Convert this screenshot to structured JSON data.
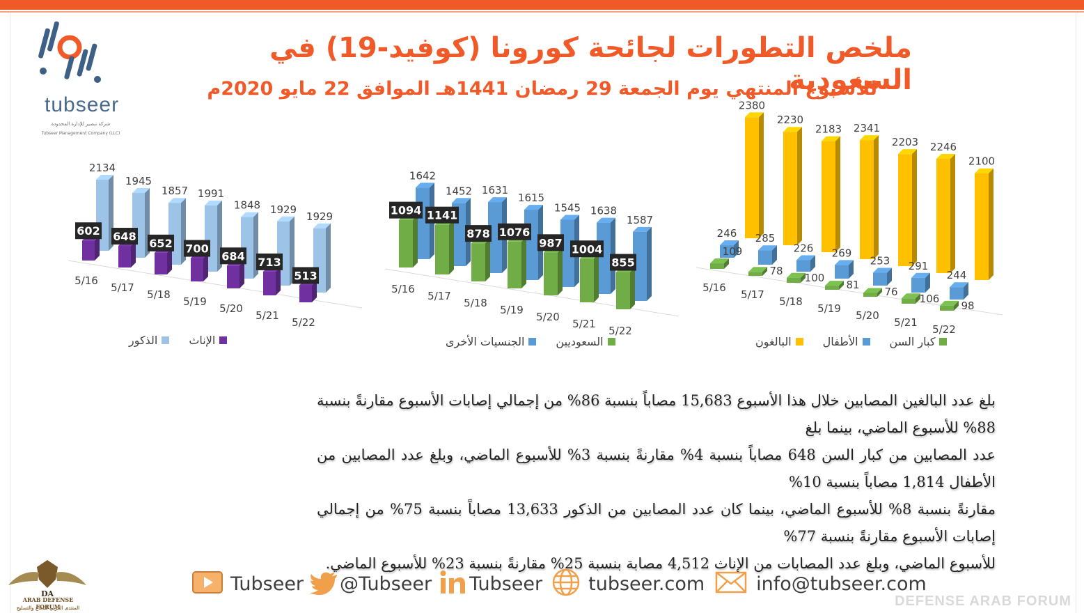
{
  "header": {
    "title": "ملخص التطورات لجائحة كورونا (كوفيد-19) في السعودية",
    "subtitle": "للأسبوع المنتهي يوم الجمعة 29 رمضان 1441هـ الموافق 22 مايو 2020م"
  },
  "logo": {
    "name": "tubseer",
    "tagline": "شركة تبصير للإدارة المحدودة",
    "tagline_en": "Tubseer Management Company (LLC)"
  },
  "colors": {
    "accent": "#f05a28",
    "female": "#7030a0",
    "male": "#9dc3e6",
    "saudi": "#70ad47",
    "others": "#5b9bd5",
    "adults": "#ffc000",
    "children": "#5b9bd5",
    "elderly": "#70ad47"
  },
  "chart_data": [
    {
      "type": "bar",
      "categories": [
        "5/16",
        "5/17",
        "5/18",
        "5/19",
        "5/20",
        "5/21",
        "5/22"
      ],
      "series": [
        {
          "name": "الإناث",
          "values": [
            602,
            648,
            652,
            700,
            684,
            713,
            513
          ],
          "color": "#7030a0"
        },
        {
          "name": "الذكور",
          "values": [
            2134,
            1945,
            1857,
            1991,
            1848,
            1929,
            1929
          ],
          "color": "#9dc3e6"
        }
      ],
      "legend_position": "bottom"
    },
    {
      "type": "bar",
      "categories": [
        "5/16",
        "5/17",
        "5/18",
        "5/19",
        "5/20",
        "5/21",
        "5/22"
      ],
      "series": [
        {
          "name": "السعوديين",
          "values": [
            1094,
            1141,
            878,
            1076,
            987,
            1004,
            855
          ],
          "color": "#70ad47"
        },
        {
          "name": "الجنسيات الأخرى",
          "values": [
            1642,
            1452,
            1631,
            1615,
            1545,
            1638,
            1587
          ],
          "color": "#5b9bd5"
        }
      ],
      "legend_position": "bottom"
    },
    {
      "type": "bar",
      "categories": [
        "5/16",
        "5/17",
        "5/18",
        "5/19",
        "5/20",
        "5/21",
        "5/22"
      ],
      "series": [
        {
          "name": "كبار السن",
          "values": [
            109,
            78,
            100,
            81,
            76,
            106,
            98
          ],
          "color": "#70ad47"
        },
        {
          "name": "الأطفال",
          "values": [
            246,
            285,
            226,
            269,
            253,
            291,
            244
          ],
          "color": "#5b9bd5"
        },
        {
          "name": "البالغون",
          "values": [
            2380,
            2230,
            2183,
            2341,
            2203,
            2246,
            2100
          ],
          "color": "#ffc000"
        }
      ],
      "legend_position": "bottom"
    }
  ],
  "paragraph": [
    "بلغ عدد البالغين المصابين خلال هذا الأسبوع 15,683 مصاباً بنسبة 86% من إجمالي إصابات الأسبوع مقارنةً بنسبة 88% للأسبوع الماضي، بينما بلغ",
    "عدد المصابين من كبار السن 648 مصاباً بنسبة 4% مقارنةً بنسبة 3% للأسبوع الماضي، وبلغ عدد المصابين من الأطفال 1,814 مصاباً بنسبة 10%",
    "مقارنةً بنسبة 8% للأسبوع الماضي، بينما كان عدد المصابين من الذكور 13,633 مصاباً بنسبة 75% من إجمالي إصابات الأسبوع مقارنةً بنسبة 77%",
    "للأسبوع الماضي، وبلغ عدد المصابات من الإناث 4,512 مصابة بنسبة 25% مقارنةً بنسبة 23% للأسبوع الماضي."
  ],
  "footer": {
    "youtube": "Tubseer",
    "twitter": "@Tubseer",
    "linkedin": "Tubseer",
    "website": "tubseer.com",
    "email": "info@tubseer.com",
    "icons": [
      "youtube-icon",
      "twitter-icon",
      "linkedin-icon",
      "globe-icon",
      "mail-icon"
    ]
  },
  "watermark": {
    "text": "DEFENSE ARAB FORUM",
    "badge_text": "ARAB DEFENSE FORUM",
    "badge_initials": "DA",
    "badge_sub": "المنتدى العربي للدفاع والتسليح"
  }
}
